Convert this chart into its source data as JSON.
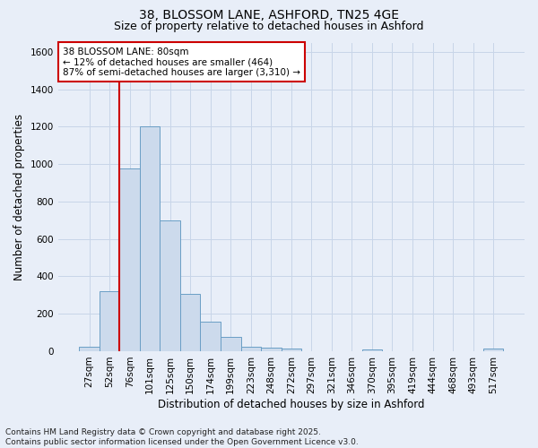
{
  "title_line1": "38, BLOSSOM LANE, ASHFORD, TN25 4GE",
  "title_line2": "Size of property relative to detached houses in Ashford",
  "xlabel": "Distribution of detached houses by size in Ashford",
  "ylabel": "Number of detached properties",
  "categories": [
    "27sqm",
    "52sqm",
    "76sqm",
    "101sqm",
    "125sqm",
    "150sqm",
    "174sqm",
    "199sqm",
    "223sqm",
    "248sqm",
    "272sqm",
    "297sqm",
    "321sqm",
    "346sqm",
    "370sqm",
    "395sqm",
    "419sqm",
    "444sqm",
    "468sqm",
    "493sqm",
    "517sqm"
  ],
  "values": [
    22,
    320,
    975,
    1200,
    700,
    305,
    160,
    75,
    25,
    18,
    12,
    0,
    0,
    0,
    8,
    0,
    0,
    0,
    0,
    0,
    12
  ],
  "bar_color": "#ccdaec",
  "bar_edge_color": "#6a9ec5",
  "vline_x": 1.5,
  "vline_color": "#cc0000",
  "annotation_text": "38 BLOSSOM LANE: 80sqm\n← 12% of detached houses are smaller (464)\n87% of semi-detached houses are larger (3,310) →",
  "annotation_box_edge": "#cc0000",
  "annotation_box_face": "#ffffff",
  "ylim": [
    0,
    1650
  ],
  "yticks": [
    0,
    200,
    400,
    600,
    800,
    1000,
    1200,
    1400,
    1600
  ],
  "grid_color": "#c8d5e8",
  "background_color": "#e8eef8",
  "footnote": "Contains HM Land Registry data © Crown copyright and database right 2025.\nContains public sector information licensed under the Open Government Licence v3.0.",
  "title_fontsize": 10,
  "subtitle_fontsize": 9,
  "axis_label_fontsize": 8.5,
  "tick_fontsize": 7.5,
  "annotation_fontsize": 7.5,
  "footnote_fontsize": 6.5
}
